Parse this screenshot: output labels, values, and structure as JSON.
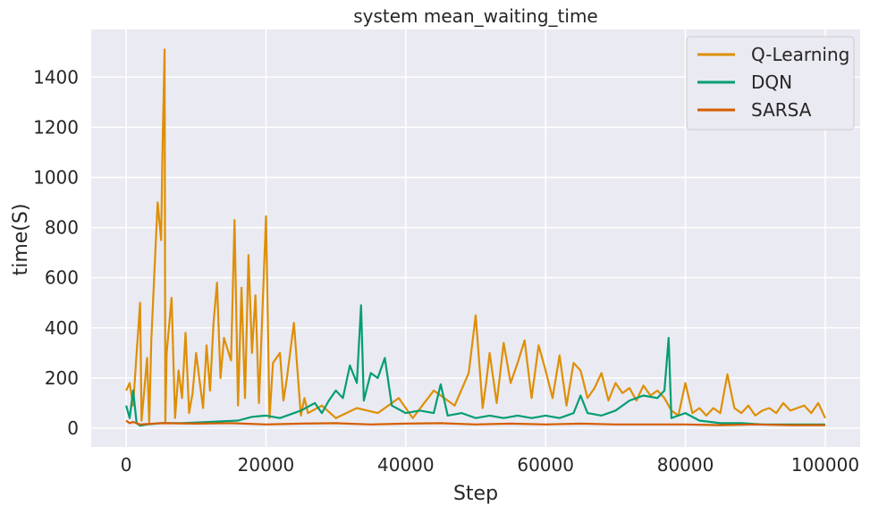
{
  "chart_data": {
    "type": "line",
    "title": "system mean_waiting_time",
    "xlabel": "Step",
    "ylabel": "time(S)",
    "xlim": [
      -5000,
      105000
    ],
    "ylim": [
      -75,
      1590
    ],
    "x_ticks": [
      0,
      20000,
      40000,
      60000,
      80000,
      100000
    ],
    "x_tick_labels": [
      "0",
      "20000",
      "40000",
      "60000",
      "80000",
      "100000"
    ],
    "y_ticks": [
      0,
      200,
      400,
      600,
      800,
      1000,
      1200,
      1400
    ],
    "y_tick_labels": [
      "0",
      "200",
      "400",
      "600",
      "800",
      "1000",
      "1200",
      "1400"
    ],
    "grid": true,
    "legend_position": "top-right",
    "colors": {
      "background": "#eaeaf2",
      "grid": "#ffffff",
      "Q-Learning": "#de8f05",
      "DQN": "#029e73",
      "SARSA": "#d55e00"
    },
    "series": [
      {
        "name": "Q-Learning",
        "x": [
          0,
          500,
          1000,
          1500,
          2000,
          2200,
          2500,
          3000,
          3300,
          3600,
          4000,
          4500,
          5000,
          5200,
          5500,
          5600,
          5800,
          6500,
          7000,
          7500,
          8000,
          8500,
          9000,
          9500,
          10000,
          11000,
          11500,
          12000,
          12500,
          13000,
          13500,
          14000,
          15000,
          15500,
          16000,
          16500,
          17000,
          17500,
          18000,
          18500,
          19000,
          20000,
          20500,
          21000,
          22000,
          22500,
          23000,
          24000,
          25000,
          25500,
          26000,
          28000,
          30000,
          33000,
          36000,
          39000,
          41000,
          44000,
          47000,
          49000,
          50000,
          51000,
          51500,
          52000,
          53000,
          54000,
          55000,
          56000,
          57000,
          58000,
          59000,
          60000,
          61000,
          62000,
          63000,
          64000,
          65000,
          66000,
          67000,
          68000,
          69000,
          70000,
          71000,
          72000,
          73000,
          74000,
          75000,
          76000,
          77000,
          78000,
          79000,
          80000,
          81000,
          82000,
          83000,
          84000,
          85000,
          86000,
          87000,
          88000,
          89000,
          90000,
          91000,
          92000,
          93000,
          94000,
          95000,
          96000,
          97000,
          98000,
          99000,
          100000
        ],
        "y": [
          150,
          180,
          90,
          300,
          500,
          30,
          120,
          280,
          20,
          350,
          600,
          900,
          750,
          1100,
          1510,
          20,
          300,
          520,
          40,
          230,
          120,
          380,
          60,
          140,
          300,
          80,
          330,
          150,
          420,
          580,
          200,
          360,
          270,
          830,
          90,
          560,
          120,
          690,
          300,
          530,
          100,
          845,
          40,
          260,
          300,
          110,
          200,
          420,
          50,
          120,
          60,
          90,
          40,
          80,
          60,
          120,
          40,
          150,
          90,
          220,
          450,
          80,
          180,
          300,
          100,
          340,
          180,
          260,
          350,
          120,
          330,
          230,
          120,
          290,
          90,
          260,
          230,
          120,
          160,
          220,
          110,
          180,
          140,
          160,
          110,
          170,
          130,
          150,
          120,
          70,
          50,
          180,
          60,
          80,
          50,
          80,
          60,
          215,
          80,
          60,
          90,
          50,
          70,
          80,
          60,
          100,
          70,
          80,
          90,
          60,
          100,
          40
        ]
      },
      {
        "name": "DQN",
        "x": [
          0,
          500,
          1000,
          1500,
          2000,
          3000,
          5000,
          8000,
          12000,
          16000,
          18000,
          20000,
          22000,
          25000,
          27000,
          28000,
          29000,
          30000,
          31000,
          32000,
          33000,
          33600,
          34000,
          35000,
          36000,
          37000,
          38000,
          40000,
          42000,
          44000,
          45000,
          46000,
          48000,
          50000,
          52000,
          54000,
          56000,
          58000,
          60000,
          62000,
          64000,
          65000,
          66000,
          68000,
          70000,
          72000,
          74000,
          76000,
          77000,
          77600,
          78000,
          79000,
          80000,
          82000,
          85000,
          88000,
          91000,
          94000,
          97000,
          100000
        ],
        "y": [
          90,
          40,
          150,
          20,
          10,
          15,
          20,
          20,
          25,
          30,
          45,
          50,
          40,
          70,
          100,
          60,
          110,
          150,
          120,
          250,
          180,
          490,
          110,
          220,
          200,
          280,
          90,
          60,
          70,
          60,
          175,
          50,
          60,
          40,
          50,
          40,
          50,
          40,
          50,
          40,
          60,
          130,
          60,
          50,
          70,
          110,
          130,
          120,
          150,
          360,
          40,
          50,
          60,
          30,
          20,
          20,
          15,
          15,
          15,
          15
        ]
      },
      {
        "name": "SARSA",
        "x": [
          0,
          500,
          1000,
          2000,
          5000,
          10000,
          15000,
          20000,
          25000,
          30000,
          35000,
          40000,
          45000,
          50000,
          55000,
          60000,
          65000,
          70000,
          75000,
          80000,
          85000,
          90000,
          95000,
          100000
        ],
        "y": [
          30,
          20,
          25,
          15,
          20,
          18,
          20,
          15,
          18,
          20,
          15,
          18,
          20,
          15,
          18,
          15,
          18,
          15,
          15,
          15,
          12,
          15,
          12,
          12
        ]
      }
    ]
  }
}
